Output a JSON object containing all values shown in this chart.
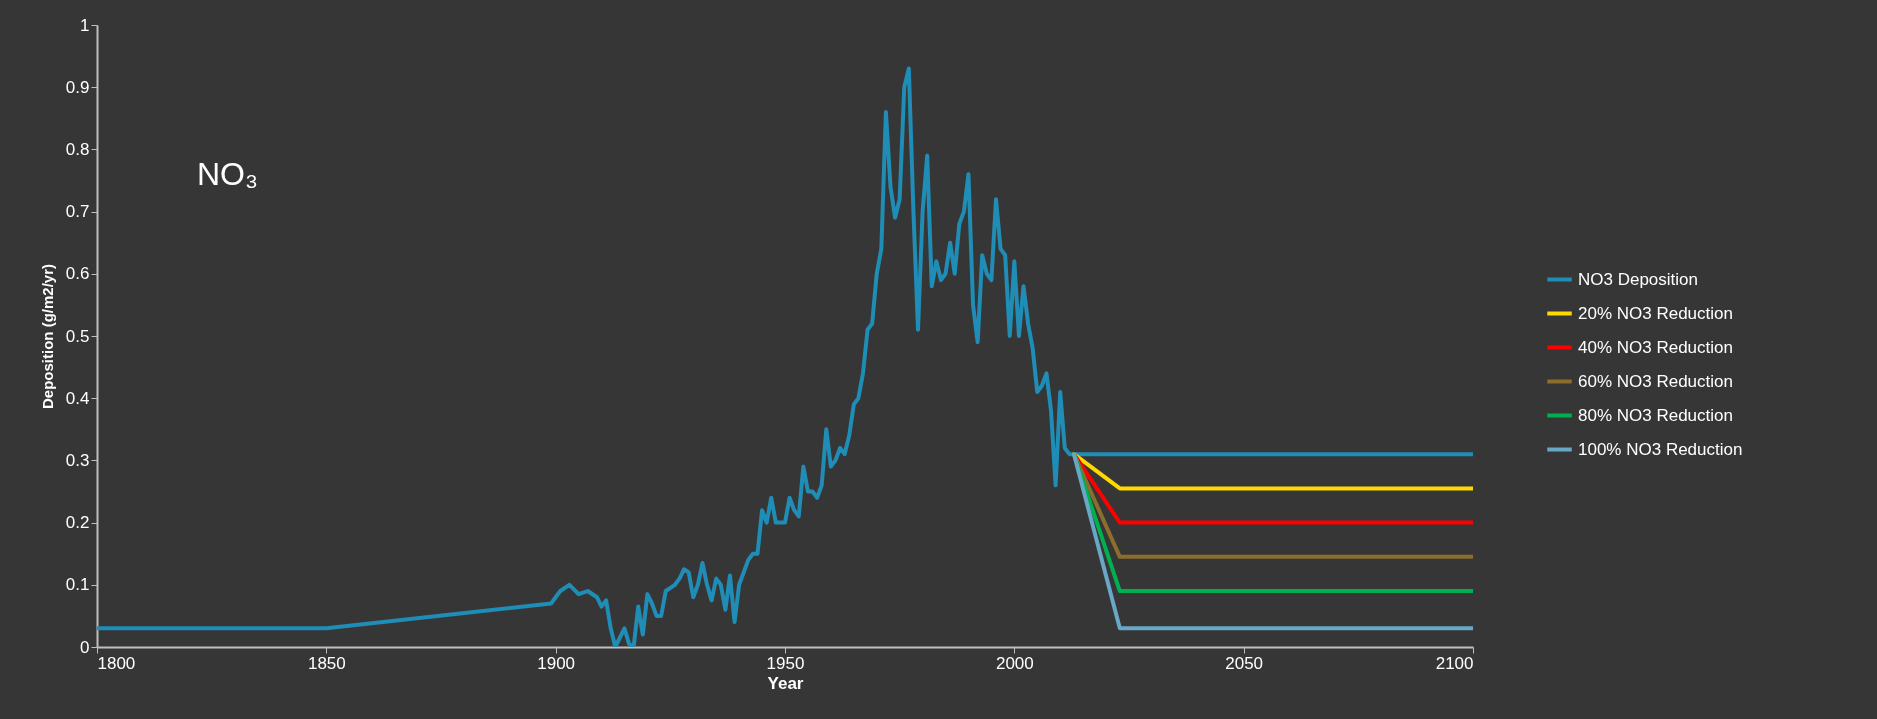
{
  "chart_data": {
    "type": "line",
    "xlabel": "Year",
    "ylabel": "Deposition (g/m2/yr)",
    "annotations": [
      "NO₃"
    ],
    "xlim": [
      1800,
      2100
    ],
    "xticks": [
      1800,
      1850,
      1900,
      1950,
      2000,
      2050,
      2100
    ],
    "ylim": [
      0,
      1
    ],
    "yticks": [
      0,
      0.1,
      0.2,
      0.3,
      0.4,
      0.5,
      0.6,
      0.7,
      0.8,
      0.9,
      1
    ],
    "grid": false,
    "legend": "right",
    "marker": "none",
    "line_style": "solid",
    "series": [
      {
        "name": "NO3 Deposition",
        "color": "#1f8db5",
        "x": [
          1800,
          1850,
          1899,
          1901,
          1903,
          1905,
          1907,
          1909,
          1910,
          1911,
          1912,
          1913,
          1915,
          1916,
          1917,
          1918,
          1919,
          1920,
          1921,
          1922,
          1923,
          1924,
          1926,
          1927,
          1928,
          1929,
          1930,
          1931,
          1932,
          1933,
          1934,
          1935,
          1936,
          1937,
          1938,
          1939,
          1940,
          1942,
          1943,
          1944,
          1945,
          1946,
          1947,
          1948,
          1950,
          1951,
          1952,
          1953,
          1954,
          1955,
          1956,
          1957,
          1958,
          1959,
          1960,
          1961,
          1962,
          1963,
          1964,
          1965,
          1966,
          1967,
          1968,
          1969,
          1970,
          1971,
          1972,
          1973,
          1974,
          1975,
          1976,
          1977,
          1978,
          1979,
          1980,
          1981,
          1982,
          1983,
          1984,
          1985,
          1986,
          1987,
          1988,
          1989,
          1990,
          1991,
          1992,
          1993,
          1994,
          1995,
          1996,
          1997,
          1998,
          1999,
          2000,
          2001,
          2002,
          2003,
          2004,
          2005,
          2006,
          2007,
          2008,
          2009,
          2010,
          2011,
          2012,
          2013,
          2100
        ],
        "values": [
          0.03,
          0.03,
          0.07,
          0.09,
          0.1,
          0.085,
          0.09,
          0.08,
          0.065,
          0.075,
          0.03,
          0,
          0.03,
          0.005,
          0,
          0.065,
          0.02,
          0.085,
          0.07,
          0.05,
          0.05,
          0.09,
          0.1,
          0.11,
          0.125,
          0.12,
          0.08,
          0.1,
          0.135,
          0.1,
          0.075,
          0.11,
          0.1,
          0.06,
          0.115,
          0.04,
          0.1,
          0.14,
          0.15,
          0.15,
          0.22,
          0.2,
          0.24,
          0.2,
          0.2,
          0.24,
          0.22,
          0.21,
          0.29,
          0.25,
          0.25,
          0.24,
          0.26,
          0.35,
          0.29,
          0.3,
          0.32,
          0.31,
          0.34,
          0.39,
          0.4,
          0.44,
          0.51,
          0.52,
          0.6,
          0.64,
          0.86,
          0.74,
          0.69,
          0.72,
          0.9,
          0.93,
          0.7,
          0.51,
          0.7,
          0.79,
          0.58,
          0.62,
          0.59,
          0.6,
          0.65,
          0.6,
          0.68,
          0.7,
          0.76,
          0.55,
          0.49,
          0.63,
          0.6,
          0.59,
          0.72,
          0.64,
          0.63,
          0.5,
          0.62,
          0.5,
          0.58,
          0.52,
          0.48,
          0.41,
          0.42,
          0.44,
          0.38,
          0.26,
          0.41,
          0.32,
          0.31,
          0.31,
          0.31
        ]
      },
      {
        "name": "20% NO3 Reduction",
        "color": "#ffd800",
        "x": [
          2013,
          2023,
          2100
        ],
        "values": [
          0.31,
          0.255,
          0.255
        ]
      },
      {
        "name": "40% NO3 Reduction",
        "color": "#ff0000",
        "x": [
          2013,
          2023,
          2100
        ],
        "values": [
          0.31,
          0.2,
          0.2
        ]
      },
      {
        "name": "60% NO3 Reduction",
        "color": "#8c6d2c",
        "x": [
          2013,
          2023,
          2100
        ],
        "values": [
          0.31,
          0.145,
          0.145
        ]
      },
      {
        "name": "80% NO3 Reduction",
        "color": "#00b050",
        "x": [
          2013,
          2023,
          2100
        ],
        "values": [
          0.31,
          0.09,
          0.09
        ]
      },
      {
        "name": "100% NO3 Reduction",
        "color": "#69a7c6",
        "x": [
          2013,
          2023,
          2100
        ],
        "values": [
          0.31,
          0.03,
          0.03
        ]
      }
    ]
  }
}
